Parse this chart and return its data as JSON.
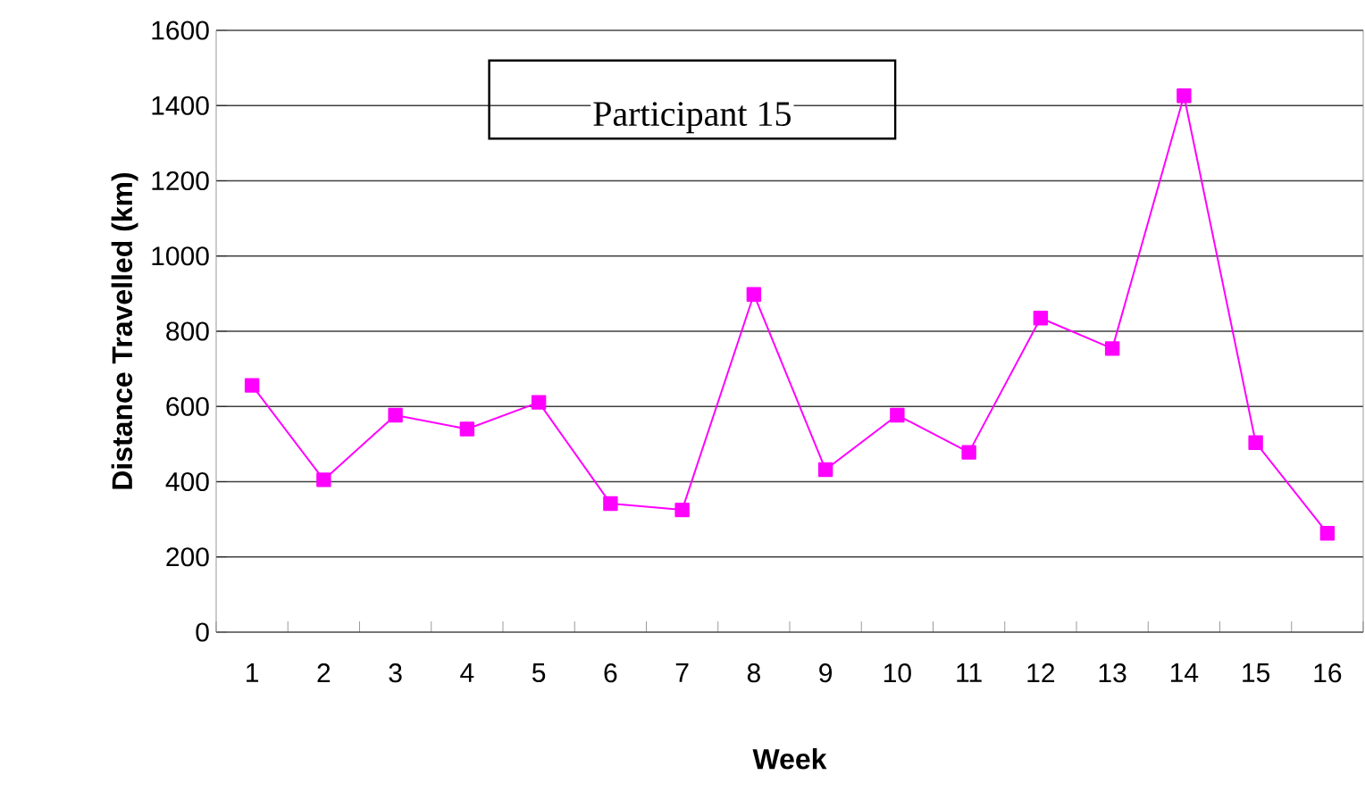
{
  "chart_data": {
    "type": "line",
    "xlabel": "Week",
    "ylabel": "Distance Travelled (km)",
    "annotations": [
      "Participant 15"
    ],
    "categories": [
      "1",
      "2",
      "3",
      "4",
      "5",
      "6",
      "7",
      "8",
      "9",
      "10",
      "11",
      "12",
      "13",
      "14",
      "15",
      "16"
    ],
    "series": [
      {
        "color": "#ff00ff",
        "values": [
          656,
          405,
          577,
          540,
          611,
          342,
          325,
          898,
          432,
          577,
          478,
          835,
          754,
          1426,
          504,
          263
        ]
      }
    ],
    "ylim": [
      0,
      1600
    ],
    "yticks": [
      0,
      200,
      400,
      600,
      800,
      1000,
      1200,
      1400,
      1600
    ],
    "grid": "y",
    "marker": "square",
    "line_style": "solid"
  }
}
